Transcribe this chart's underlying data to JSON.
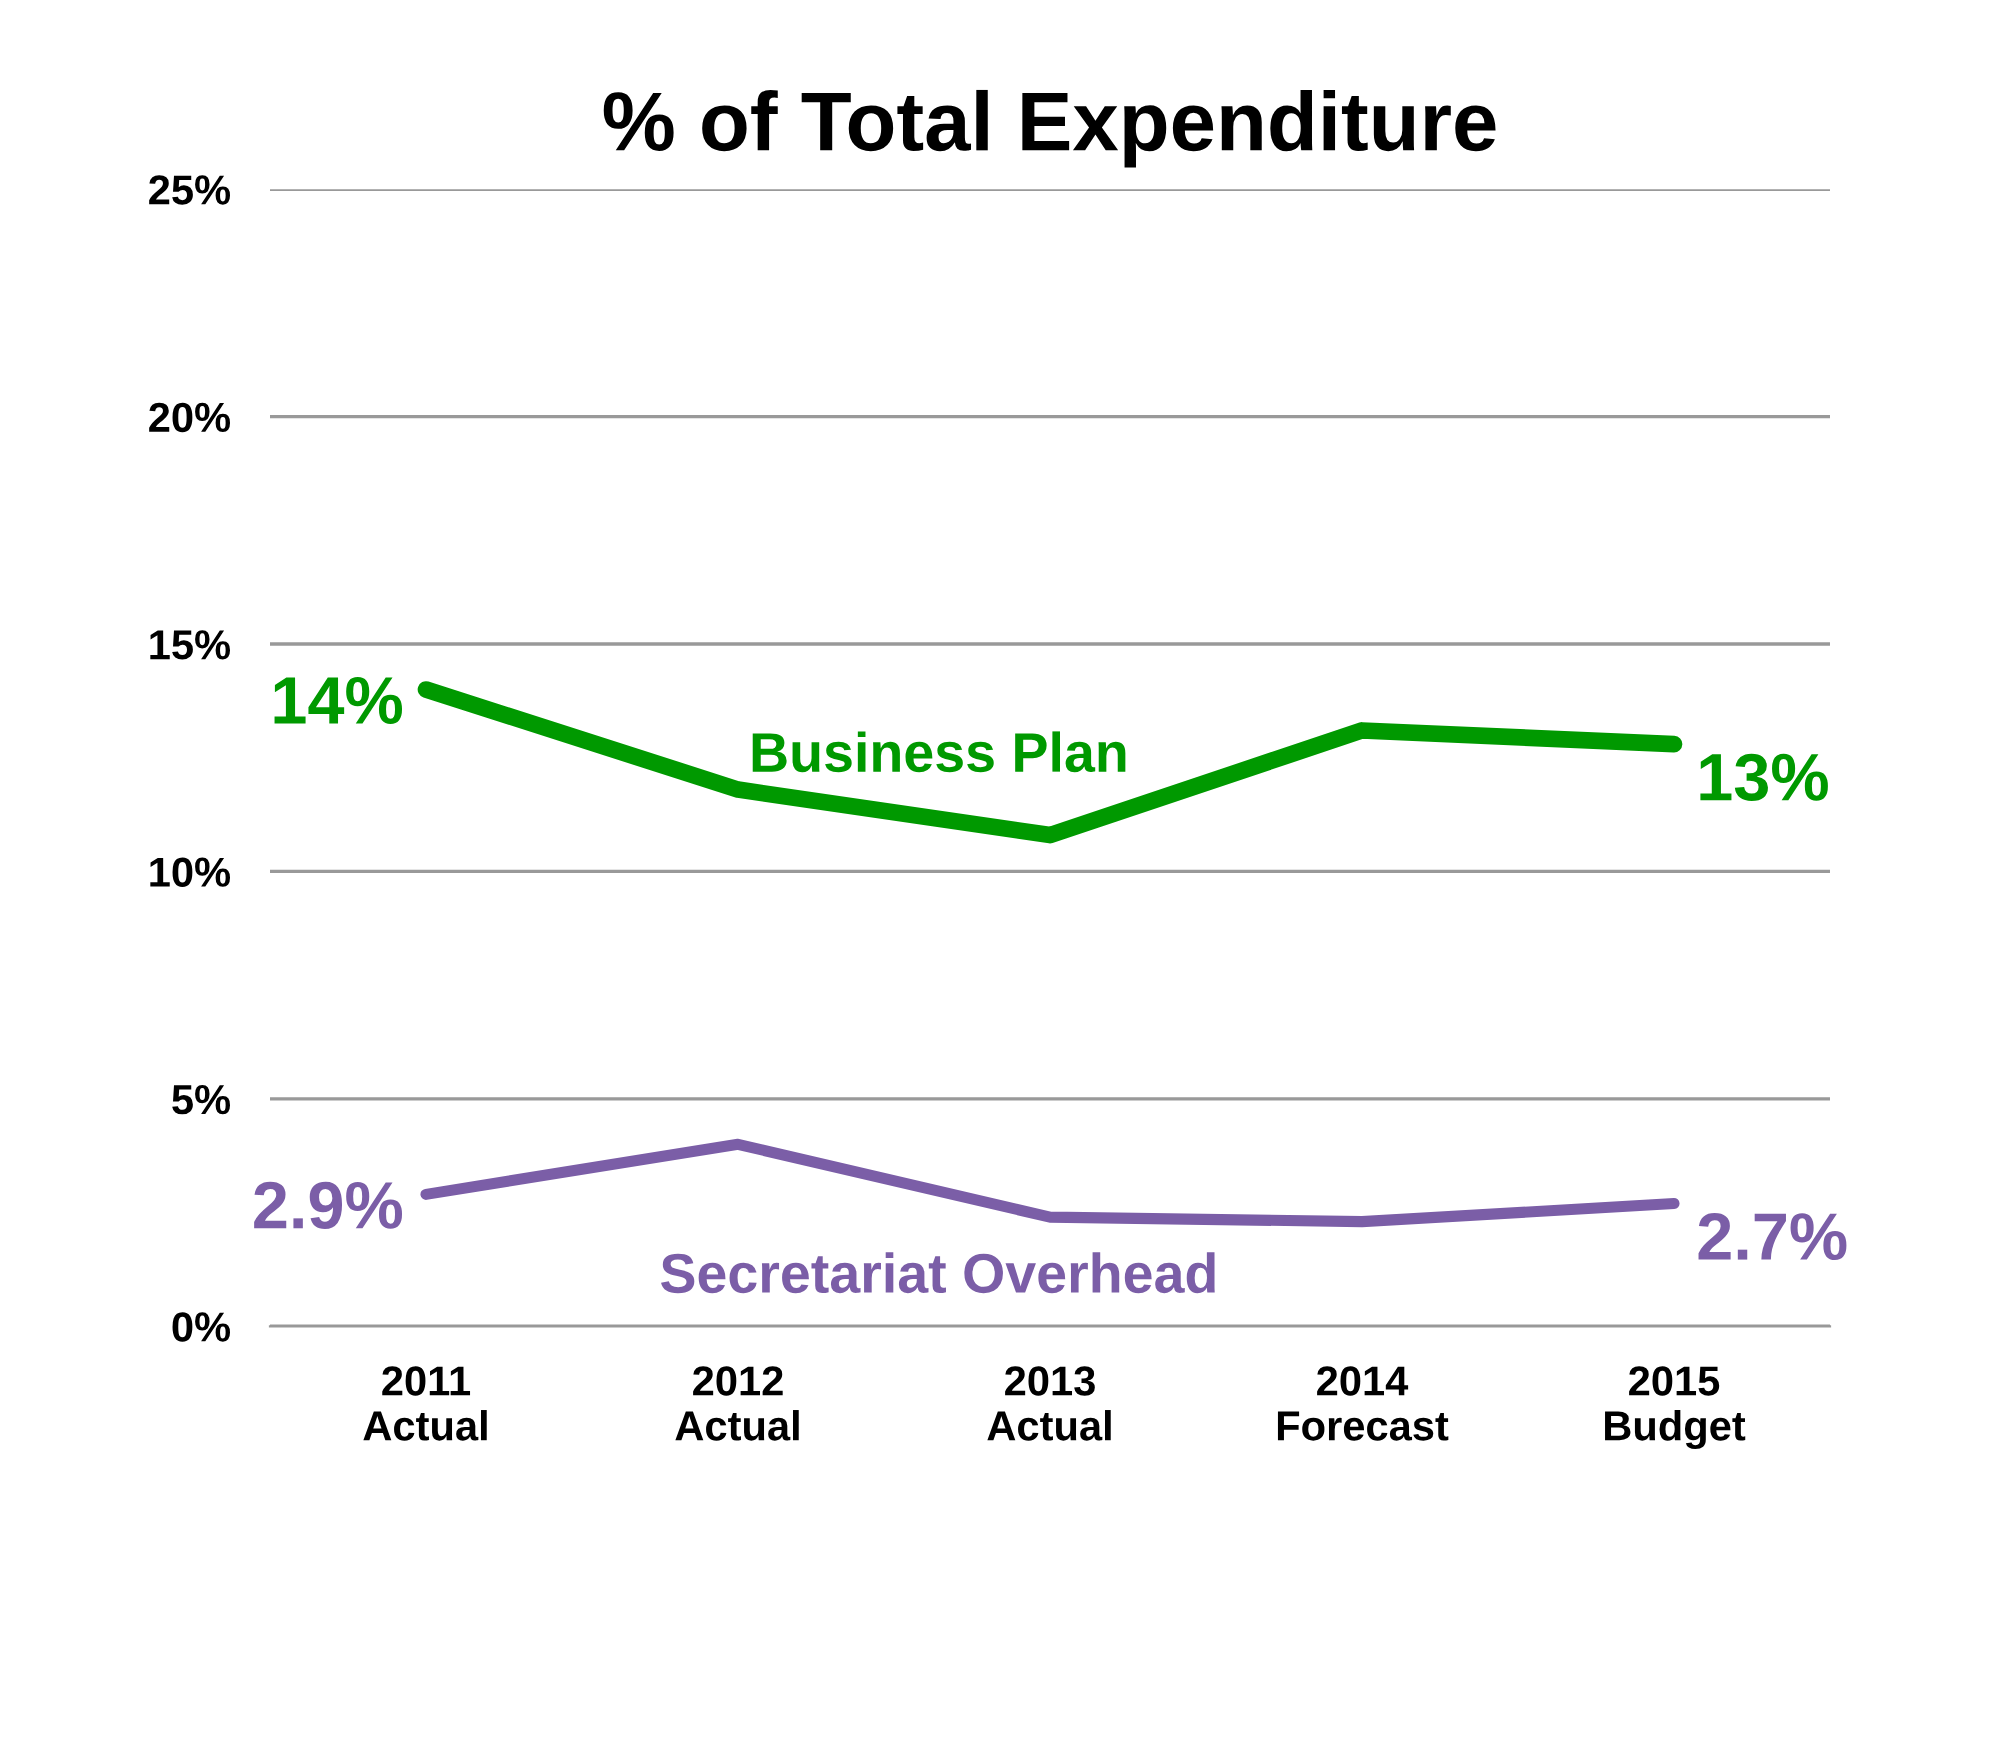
{
  "chart_data": {
    "type": "line",
    "title": "% of Total Expenditure",
    "categories": [
      "2011\nActual",
      "2012\nActual",
      "2013\nActual",
      "2014\nForecast",
      "2015\nBudget"
    ],
    "series": [
      {
        "name": "Business Plan",
        "color": "#009900",
        "values": [
          14,
          11.8,
          10.8,
          13.1,
          12.8
        ],
        "value_labels": [
          "14%",
          null,
          null,
          null,
          "13%"
        ]
      },
      {
        "name": "Secretariat Overhead",
        "color": "#7b5ea7",
        "values": [
          2.9,
          4.0,
          2.4,
          2.3,
          2.7
        ],
        "value_labels": [
          "2.9%",
          null,
          null,
          null,
          "2.7%"
        ]
      }
    ],
    "ylim": [
      0,
      25
    ],
    "yticks": [
      {
        "value": 0,
        "label": "0%"
      },
      {
        "value": 5,
        "label": "5%"
      },
      {
        "value": 10,
        "label": "10%"
      },
      {
        "value": 15,
        "label": "15%"
      },
      {
        "value": 20,
        "label": "20%"
      },
      {
        "value": 25,
        "label": "25%"
      }
    ],
    "grid": "y",
    "legend": false,
    "marker": "none",
    "line_style": "solid"
  }
}
